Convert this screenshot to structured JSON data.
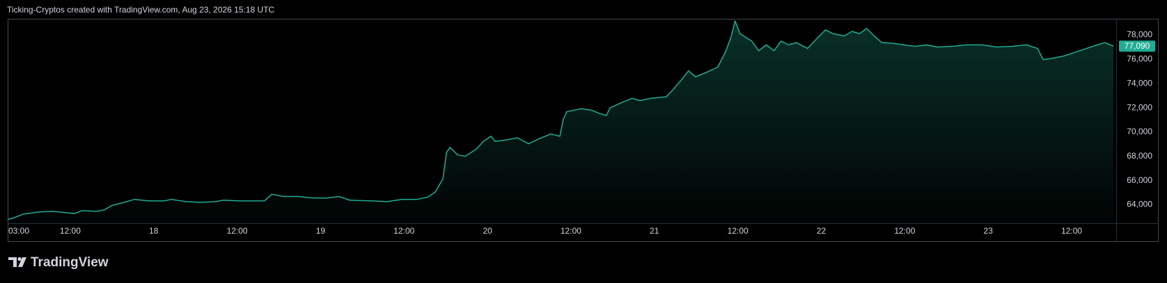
{
  "caption": "Ticking-Cryptos created with TradingView.com, Aug 23, 2026 15:18 UTC",
  "watermark": "TradingView",
  "chart_data": {
    "type": "area",
    "color": "#22ab94",
    "x": [
      3.0,
      4.1,
      5.1,
      7.3,
      9.4,
      11.6,
      12.6,
      13.7,
      15.8,
      16.9,
      18.0,
      20.1,
      21.2,
      23.3,
      25.5,
      26.5,
      28.7,
      30.8,
      32.9,
      34.0,
      36.2,
      38.3,
      39.9,
      41.0,
      42.6,
      44.7,
      46.9,
      49.0,
      50.6,
      52.2,
      55.4,
      57.5,
      59.7,
      61.8,
      63.4,
      64.5,
      65.6,
      66.1,
      66.6,
      67.7,
      68.8,
      70.4,
      71.4,
      72.5,
      73.1,
      74.7,
      76.3,
      77.9,
      79.5,
      81.1,
      82.4,
      82.9,
      83.4,
      85.4,
      87.0,
      88.0,
      89.1,
      89.6,
      91.2,
      92.8,
      93.9,
      95.5,
      97.7,
      98.7,
      99.8,
      100.9,
      101.9,
      103.5,
      105.1,
      106.2,
      107.0,
      107.6,
      108.3,
      110.0,
      111.0,
      112.1,
      113.2,
      114.2,
      115.3,
      116.4,
      118.0,
      119.0,
      120.6,
      121.7,
      123.3,
      124.4,
      125.5,
      126.5,
      127.6,
      128.7,
      130.3,
      131.9,
      133.5,
      135.1,
      136.7,
      138.8,
      141.0,
      143.1,
      145.2,
      147.4,
      149.5,
      151.1,
      151.9,
      153.3,
      154.9,
      156.5,
      158.1,
      159.7,
      160.8,
      162.0
    ],
    "values": [
      62790,
      62970,
      63210,
      63400,
      63460,
      63340,
      63280,
      63520,
      63460,
      63580,
      63950,
      64260,
      64440,
      64320,
      64320,
      64440,
      64260,
      64200,
      64260,
      64380,
      64320,
      64320,
      64320,
      64870,
      64690,
      64690,
      64560,
      64560,
      64690,
      64380,
      64320,
      64260,
      64440,
      64440,
      64630,
      65060,
      66160,
      68310,
      68740,
      68120,
      68000,
      68610,
      69230,
      69660,
      69230,
      69350,
      69530,
      69040,
      69470,
      69840,
      69660,
      71070,
      71680,
      71930,
      71800,
      71560,
      71370,
      71990,
      72420,
      72790,
      72600,
      72790,
      72910,
      73520,
      74260,
      75060,
      74560,
      74930,
      75360,
      76590,
      77820,
      79170,
      78120,
      77510,
      76710,
      77200,
      76710,
      77510,
      77200,
      77390,
      76900,
      77510,
      78430,
      78120,
      77940,
      78310,
      78120,
      78550,
      77940,
      77390,
      77330,
      77200,
      77080,
      77200,
      77020,
      77080,
      77200,
      77200,
      77020,
      77080,
      77200,
      76900,
      75980,
      76100,
      76280,
      76590,
      76900,
      77200,
      77390,
      77090
    ],
    "xlim": [
      3,
      162.4
    ],
    "ylim": [
      62480,
      79350
    ],
    "xticks": [
      {
        "value": 3,
        "label": "03:00"
      },
      {
        "value": 12,
        "label": "12:00"
      },
      {
        "value": 24,
        "label": "18"
      },
      {
        "value": 36,
        "label": "12:00"
      },
      {
        "value": 48,
        "label": "19"
      },
      {
        "value": 60,
        "label": "12:00"
      },
      {
        "value": 72,
        "label": "20"
      },
      {
        "value": 84,
        "label": "12:00"
      },
      {
        "value": 96,
        "label": "21"
      },
      {
        "value": 108,
        "label": "12:00"
      },
      {
        "value": 120,
        "label": "22"
      },
      {
        "value": 132,
        "label": "12:00"
      },
      {
        "value": 144,
        "label": "23"
      },
      {
        "value": 156,
        "label": "12:00"
      }
    ],
    "yticks": [
      {
        "value": 64000,
        "label": "64,000"
      },
      {
        "value": 66000,
        "label": "66,000"
      },
      {
        "value": 68000,
        "label": "68,000"
      },
      {
        "value": 70000,
        "label": "70,000"
      },
      {
        "value": 72000,
        "label": "72,000"
      },
      {
        "value": 74000,
        "label": "74,000"
      },
      {
        "value": 76000,
        "label": "76,000"
      },
      {
        "value": 78000,
        "label": "78,000"
      }
    ],
    "last_price": {
      "value": 77090,
      "label": "77,090"
    },
    "grid": false
  }
}
